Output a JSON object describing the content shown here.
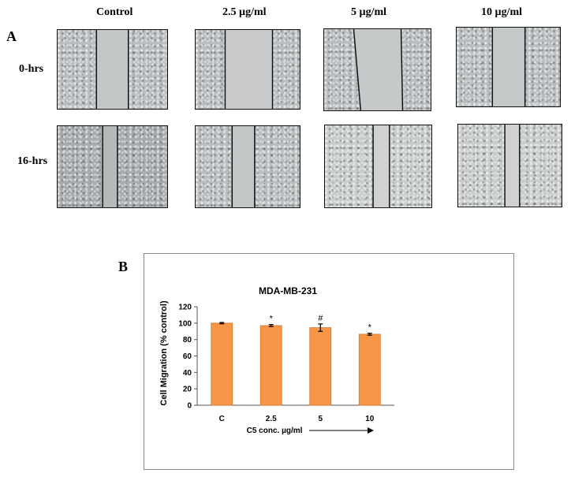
{
  "panel_a": {
    "letter": "A",
    "columns": [
      "Control",
      "2.5 µg/ml",
      "5 µg/ml",
      "10 µg/ml"
    ],
    "rows": [
      "0-hrs",
      "16-hrs"
    ]
  },
  "panel_b": {
    "letter": "B"
  },
  "chart_data": {
    "type": "bar",
    "title": "MDA-MB-231",
    "xlabel": "C5 conc. µg/ml",
    "ylabel": "Cell Migration  (% control)",
    "categories": [
      "C",
      "2.5",
      "5",
      "10"
    ],
    "values": [
      100,
      97,
      94.5,
      86.5
    ],
    "errors": [
      0.8,
      1.2,
      4.5,
      1.2
    ],
    "annotations": [
      "",
      "*",
      "#",
      "*"
    ],
    "ylim": [
      0,
      120
    ],
    "yticks": [
      0,
      20,
      40,
      60,
      80,
      100,
      120
    ],
    "bar_color": "#f79646",
    "grid": false,
    "arrow": true
  }
}
